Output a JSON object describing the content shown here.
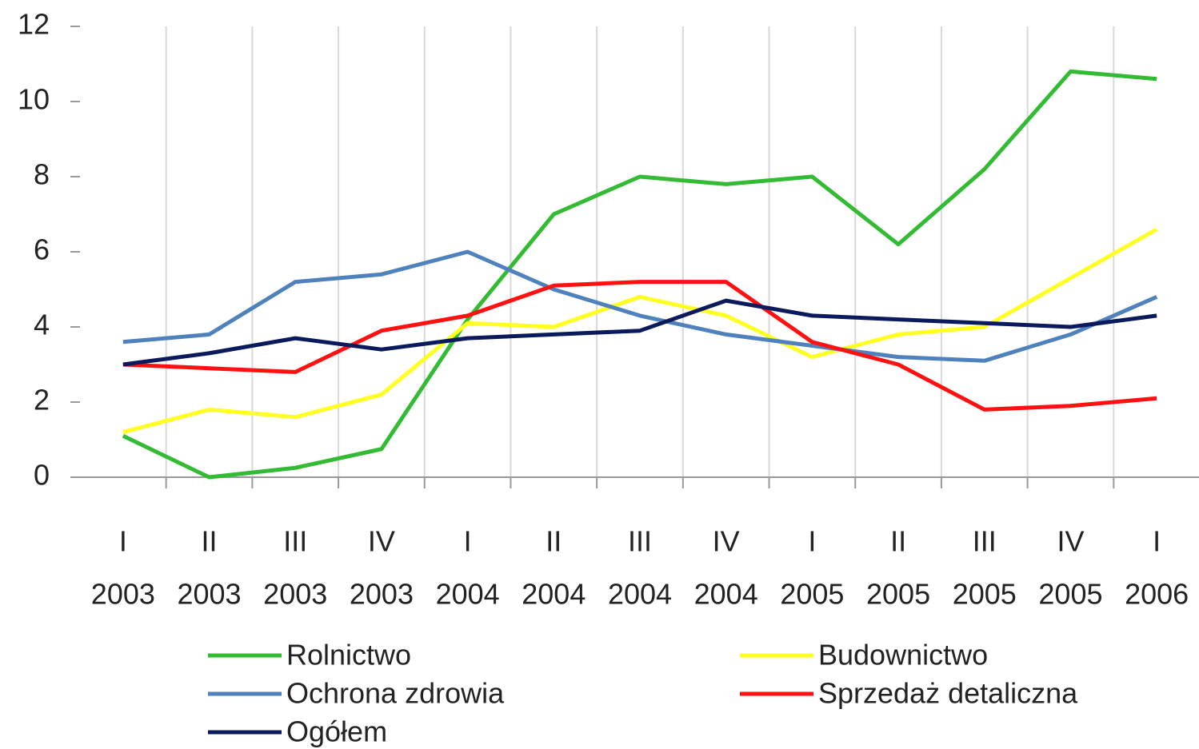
{
  "chart_data": {
    "type": "line",
    "categories": [
      [
        "I",
        "2003"
      ],
      [
        "II",
        "2003"
      ],
      [
        "III",
        "2003"
      ],
      [
        "IV",
        "2003"
      ],
      [
        "I",
        "2004"
      ],
      [
        "II",
        "2004"
      ],
      [
        "III",
        "2004"
      ],
      [
        "IV",
        "2004"
      ],
      [
        "I",
        "2005"
      ],
      [
        "II",
        "2005"
      ],
      [
        "III",
        "2005"
      ],
      [
        "IV",
        "2005"
      ],
      [
        "I",
        "2006"
      ]
    ],
    "series": [
      {
        "name": "Rolnictwo",
        "color": "#33bb33",
        "values": [
          1.1,
          0.0,
          0.25,
          0.75,
          4.2,
          7.0,
          8.0,
          7.8,
          8.0,
          6.2,
          8.2,
          10.8,
          10.6
        ]
      },
      {
        "name": "Budownictwo",
        "color": "#ffff22",
        "values": [
          1.2,
          1.8,
          1.6,
          2.2,
          4.1,
          4.0,
          4.8,
          4.3,
          3.2,
          3.8,
          4.0,
          5.3,
          6.6
        ]
      },
      {
        "name": "Ochrona zdrowia",
        "color": "#4f81bd",
        "values": [
          3.6,
          3.8,
          5.2,
          5.4,
          6.0,
          5.0,
          4.3,
          3.8,
          3.5,
          3.2,
          3.1,
          3.8,
          4.8
        ]
      },
      {
        "name": "Sprzedaż detaliczna",
        "color": "#ff1111",
        "values": [
          3.0,
          2.9,
          2.8,
          3.9,
          4.3,
          5.1,
          5.2,
          5.2,
          3.6,
          3.0,
          1.8,
          1.9,
          2.1
        ]
      },
      {
        "name": "Ogółem",
        "color": "#0a1a5c",
        "values": [
          3.0,
          3.3,
          3.7,
          3.4,
          3.7,
          3.8,
          3.9,
          4.7,
          4.3,
          4.2,
          4.1,
          4.0,
          4.3
        ]
      }
    ],
    "ylim": [
      0,
      12
    ],
    "yticks": [
      0,
      2,
      4,
      6,
      8,
      10,
      12
    ]
  }
}
